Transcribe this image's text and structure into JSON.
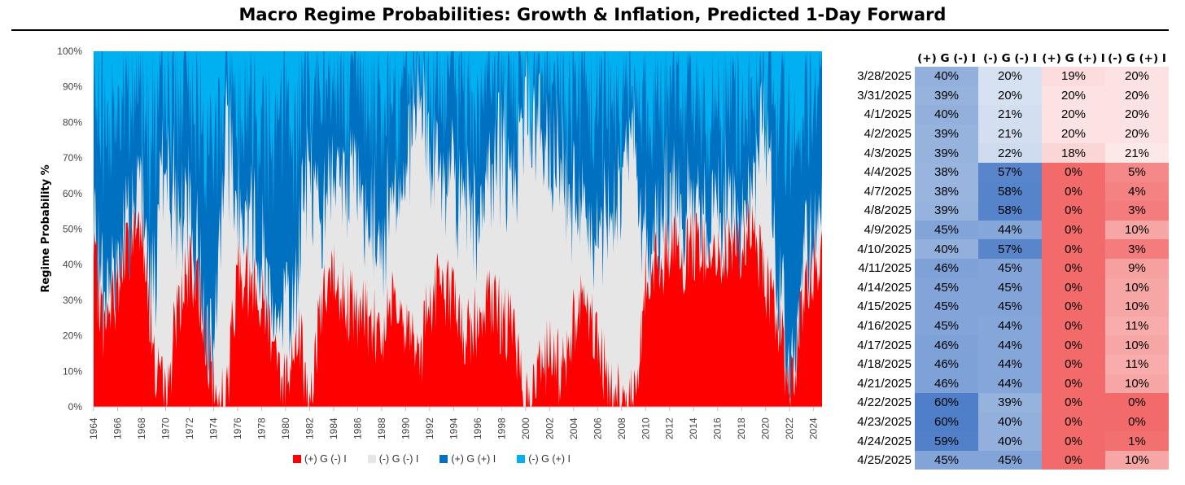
{
  "title": "Macro Regime Probabilities: Growth & Inflation, Predicted 1-Day Forward",
  "chart_data": {
    "type": "area",
    "stacked": true,
    "title": "Macro Regime Probabilities: Growth & Inflation, Predicted 1-Day Forward",
    "ylabel": "Regime Probability %",
    "xlabel": "",
    "ylim": [
      0,
      100
    ],
    "y_ticks": [
      "0%",
      "10%",
      "20%",
      "30%",
      "40%",
      "50%",
      "60%",
      "70%",
      "80%",
      "90%",
      "100%"
    ],
    "x_ticks": [
      "1964",
      "1966",
      "1968",
      "1970",
      "1972",
      "1974",
      "1976",
      "1978",
      "1980",
      "1982",
      "1984",
      "1986",
      "1988",
      "1990",
      "1992",
      "1994",
      "1996",
      "1998",
      "2000",
      "2002",
      "2004",
      "2006",
      "2008",
      "2010",
      "2012",
      "2014",
      "2016",
      "2018",
      "2020",
      "2022",
      "2024"
    ],
    "legend_position": "bottom",
    "series": [
      {
        "name": "(+) G (-) I",
        "color": "#ff0000"
      },
      {
        "name": "(-) G (-) I",
        "color": "#e6e6e6"
      },
      {
        "name": "(+) G (+) I",
        "color": "#0070c0"
      },
      {
        "name": "(-) G (+) I",
        "color": "#00b0f0"
      }
    ],
    "approx_yearly": {
      "x": [
        1964,
        1965,
        1966,
        1967,
        1968,
        1969,
        1970,
        1971,
        1972,
        1973,
        1974,
        1975,
        1976,
        1977,
        1978,
        1979,
        1980,
        1981,
        1982,
        1983,
        1984,
        1985,
        1986,
        1987,
        1988,
        1989,
        1990,
        1991,
        1992,
        1993,
        1994,
        1995,
        1996,
        1997,
        1998,
        1999,
        2000,
        2001,
        2002,
        2003,
        2004,
        2005,
        2006,
        2007,
        2008,
        2009,
        2010,
        2011,
        2012,
        2013,
        2014,
        2015,
        2016,
        2017,
        2018,
        2019,
        2020,
        2021,
        2022,
        2023,
        2024
      ],
      "pg_ni": [
        40,
        20,
        35,
        45,
        55,
        15,
        0,
        30,
        38,
        30,
        5,
        0,
        40,
        35,
        30,
        20,
        5,
        25,
        0,
        30,
        35,
        30,
        25,
        25,
        20,
        35,
        25,
        10,
        30,
        35,
        30,
        20,
        25,
        30,
        25,
        20,
        0,
        10,
        15,
        10,
        25,
        30,
        20,
        5,
        0,
        0,
        35,
        40,
        45,
        40,
        45,
        45,
        40,
        45,
        45,
        50,
        35,
        25,
        5,
        25,
        40
      ],
      "ng_ni": [
        5,
        10,
        10,
        5,
        10,
        20,
        70,
        25,
        15,
        5,
        10,
        80,
        15,
        20,
        15,
        10,
        20,
        15,
        70,
        20,
        30,
        40,
        35,
        30,
        25,
        30,
        40,
        75,
        40,
        30,
        30,
        40,
        30,
        35,
        50,
        40,
        85,
        70,
        50,
        60,
        35,
        20,
        30,
        50,
        60,
        80,
        10,
        10,
        15,
        10,
        10,
        10,
        15,
        10,
        10,
        10,
        50,
        10,
        5,
        10,
        10
      ],
      "pg_pi": [
        40,
        50,
        40,
        35,
        25,
        45,
        20,
        30,
        35,
        50,
        50,
        15,
        30,
        30,
        40,
        50,
        55,
        40,
        25,
        35,
        25,
        25,
        30,
        35,
        40,
        25,
        25,
        10,
        20,
        25,
        30,
        25,
        30,
        25,
        20,
        25,
        10,
        15,
        25,
        20,
        30,
        35,
        35,
        30,
        25,
        15,
        40,
        35,
        30,
        35,
        30,
        30,
        30,
        30,
        30,
        25,
        10,
        45,
        70,
        45,
        35
      ]
    }
  },
  "legend": {
    "items": [
      "(+) G (-) I",
      "(-) G (-) I",
      "(+) G (+) I",
      "(-) G (+) I"
    ]
  },
  "table": {
    "headers": [
      "(+) G (-) I",
      "(-) G (-) I",
      "(+) G (+) I",
      "(-) G (+) I"
    ],
    "rows": [
      {
        "date": "3/28/2025",
        "values": [
          "40%",
          "20%",
          "19%",
          "20%"
        ]
      },
      {
        "date": "3/31/2025",
        "values": [
          "39%",
          "20%",
          "20%",
          "20%"
        ]
      },
      {
        "date": "4/1/2025",
        "values": [
          "40%",
          "21%",
          "20%",
          "20%"
        ]
      },
      {
        "date": "4/2/2025",
        "values": [
          "39%",
          "21%",
          "20%",
          "20%"
        ]
      },
      {
        "date": "4/3/2025",
        "values": [
          "39%",
          "22%",
          "18%",
          "21%"
        ]
      },
      {
        "date": "4/4/2025",
        "values": [
          "38%",
          "57%",
          "0%",
          "5%"
        ]
      },
      {
        "date": "4/7/2025",
        "values": [
          "38%",
          "58%",
          "0%",
          "4%"
        ]
      },
      {
        "date": "4/8/2025",
        "values": [
          "39%",
          "58%",
          "0%",
          "3%"
        ]
      },
      {
        "date": "4/9/2025",
        "values": [
          "45%",
          "44%",
          "0%",
          "10%"
        ]
      },
      {
        "date": "4/10/2025",
        "values": [
          "40%",
          "57%",
          "0%",
          "3%"
        ]
      },
      {
        "date": "4/11/2025",
        "values": [
          "46%",
          "45%",
          "0%",
          "9%"
        ]
      },
      {
        "date": "4/14/2025",
        "values": [
          "45%",
          "45%",
          "0%",
          "10%"
        ]
      },
      {
        "date": "4/15/2025",
        "values": [
          "45%",
          "45%",
          "0%",
          "10%"
        ]
      },
      {
        "date": "4/16/2025",
        "values": [
          "45%",
          "44%",
          "0%",
          "11%"
        ]
      },
      {
        "date": "4/17/2025",
        "values": [
          "46%",
          "44%",
          "0%",
          "10%"
        ]
      },
      {
        "date": "4/18/2025",
        "values": [
          "46%",
          "44%",
          "0%",
          "11%"
        ]
      },
      {
        "date": "4/21/2025",
        "values": [
          "46%",
          "44%",
          "0%",
          "10%"
        ]
      },
      {
        "date": "4/22/2025",
        "values": [
          "60%",
          "39%",
          "0%",
          "0%"
        ]
      },
      {
        "date": "4/23/2025",
        "values": [
          "60%",
          "40%",
          "0%",
          "0%"
        ]
      },
      {
        "date": "4/24/2025",
        "values": [
          "59%",
          "40%",
          "0%",
          "1%"
        ]
      },
      {
        "date": "4/25/2025",
        "values": [
          "45%",
          "45%",
          "0%",
          "10%"
        ]
      }
    ]
  },
  "colors": {
    "growth_low": "#dde6f4",
    "growth_high": "#4f7fc8",
    "inflation_low": "#fdeeee",
    "inflation_high": "#f26a6a"
  }
}
